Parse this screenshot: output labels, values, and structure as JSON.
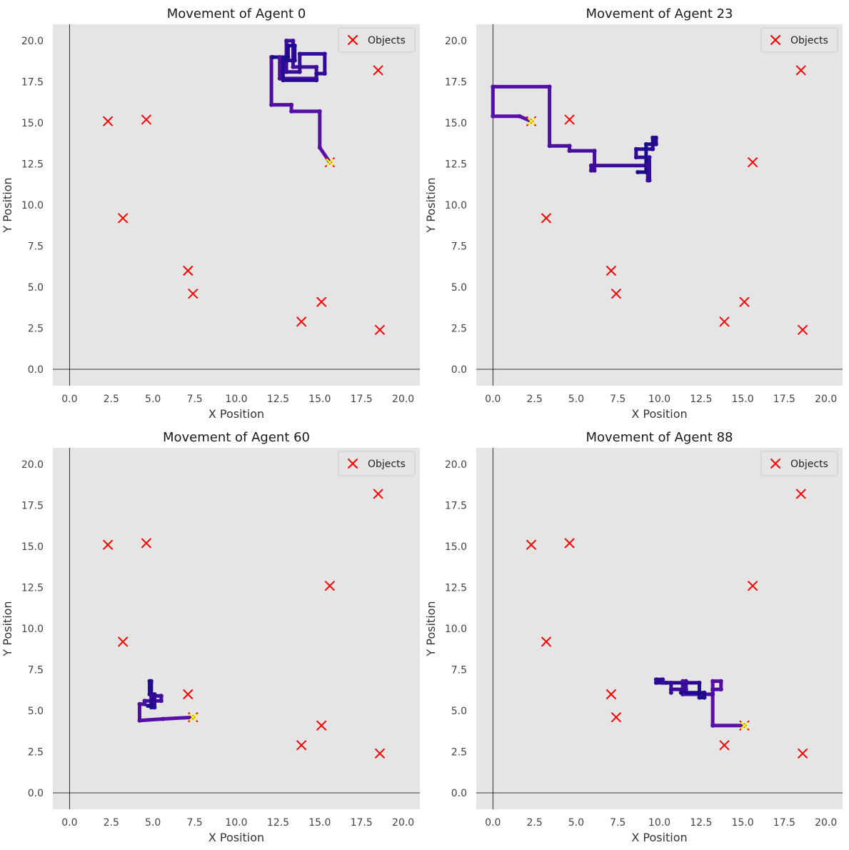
{
  "figure": {
    "colors": {
      "plot_background": "#e5e5e5",
      "axis_line": "#000000",
      "objects_marker": "#ff0000",
      "path_start": "#1a0a8c",
      "path_end": "#5b10a8",
      "endpoint_marker": "#ffff00",
      "tick_text": "#444444"
    }
  },
  "chart_data": [
    {
      "type": "scatter",
      "title": "Movement of Agent 0",
      "xlabel": "X Position",
      "ylabel": "Y Position",
      "xlim": [
        -1.0,
        21.0
      ],
      "ylim": [
        -1.0,
        21.0
      ],
      "xticks": [
        "0.0",
        "2.5",
        "5.0",
        "7.5",
        "10.0",
        "12.5",
        "15.0",
        "17.5",
        "20.0"
      ],
      "yticks": [
        "0.0",
        "2.5",
        "5.0",
        "7.5",
        "10.0",
        "12.5",
        "15.0",
        "17.5",
        "20.0"
      ],
      "grid": false,
      "legend": {
        "position": "top-right",
        "entries": [
          "Objects"
        ]
      },
      "series": [
        {
          "name": "Objects",
          "marker": "x",
          "points": [
            [
              2.3,
              15.1
            ],
            [
              4.6,
              15.2
            ],
            [
              3.2,
              9.2
            ],
            [
              7.1,
              6.0
            ],
            [
              7.4,
              4.6
            ],
            [
              13.9,
              2.9
            ],
            [
              15.1,
              4.1
            ],
            [
              18.6,
              2.4
            ],
            [
              18.5,
              18.2
            ],
            [
              15.6,
              12.6
            ]
          ]
        },
        {
          "marker": "path",
          "points": [
            [
              15.6,
              12.6
            ],
            [
              15.0,
              13.5
            ],
            [
              15.0,
              15.7
            ],
            [
              13.3,
              15.7
            ],
            [
              13.3,
              16.1
            ],
            [
              12.1,
              16.1
            ],
            [
              12.1,
              19.0
            ],
            [
              12.6,
              19.0
            ],
            [
              12.6,
              17.7
            ],
            [
              14.8,
              17.7
            ],
            [
              14.8,
              18.4
            ],
            [
              13.4,
              18.4
            ],
            [
              13.4,
              20.0
            ],
            [
              13.0,
              20.0
            ],
            [
              13.0,
              18.1
            ],
            [
              13.8,
              18.1
            ],
            [
              13.8,
              19.2
            ],
            [
              15.3,
              19.2
            ],
            [
              15.3,
              18.0
            ],
            [
              14.8,
              18.0
            ],
            [
              14.8,
              17.6
            ],
            [
              12.8,
              17.6
            ],
            [
              12.8,
              18.8
            ],
            [
              13.5,
              18.8
            ],
            [
              13.5,
              19.7
            ],
            [
              13.1,
              19.7
            ],
            [
              13.1,
              19.0
            ],
            [
              12.2,
              19.0
            ]
          ]
        },
        {
          "marker": "x",
          "points": [
            [
              15.6,
              12.6
            ]
          ]
        }
      ]
    },
    {
      "type": "scatter",
      "title": "Movement of Agent 23",
      "xlabel": "X Position",
      "ylabel": "Y Position",
      "xlim": [
        -1.0,
        21.0
      ],
      "ylim": [
        -1.0,
        21.0
      ],
      "xticks": [
        "0.0",
        "2.5",
        "5.0",
        "7.5",
        "10.0",
        "12.5",
        "15.0",
        "17.5",
        "20.0"
      ],
      "yticks": [
        "0.0",
        "2.5",
        "5.0",
        "7.5",
        "10.0",
        "12.5",
        "15.0",
        "17.5",
        "20.0"
      ],
      "grid": false,
      "legend": {
        "position": "top-right",
        "entries": [
          "Objects"
        ]
      },
      "series": [
        {
          "name": "Objects",
          "marker": "x",
          "points": [
            [
              2.3,
              15.1
            ],
            [
              4.6,
              15.2
            ],
            [
              3.2,
              9.2
            ],
            [
              7.1,
              6.0
            ],
            [
              7.4,
              4.6
            ],
            [
              13.9,
              2.9
            ],
            [
              15.1,
              4.1
            ],
            [
              18.6,
              2.4
            ],
            [
              18.5,
              18.2
            ],
            [
              15.6,
              12.6
            ]
          ]
        },
        {
          "marker": "path",
          "points": [
            [
              2.3,
              15.1
            ],
            [
              1.6,
              15.4
            ],
            [
              0.0,
              15.4
            ],
            [
              0.0,
              17.2
            ],
            [
              3.4,
              17.2
            ],
            [
              3.4,
              13.6
            ],
            [
              4.6,
              13.6
            ],
            [
              4.6,
              13.3
            ],
            [
              6.1,
              13.3
            ],
            [
              6.1,
              12.1
            ],
            [
              5.9,
              12.1
            ],
            [
              5.9,
              12.4
            ],
            [
              9.3,
              12.4
            ],
            [
              9.3,
              11.5
            ],
            [
              9.4,
              11.5
            ],
            [
              9.4,
              12.9
            ],
            [
              8.6,
              12.9
            ],
            [
              8.6,
              13.4
            ],
            [
              9.6,
              13.4
            ],
            [
              9.6,
              14.1
            ],
            [
              9.8,
              14.1
            ],
            [
              9.8,
              13.7
            ],
            [
              9.2,
              13.7
            ],
            [
              9.2,
              12.0
            ],
            [
              8.7,
              12.0
            ]
          ]
        },
        {
          "marker": "x",
          "points": [
            [
              2.3,
              15.1
            ]
          ]
        }
      ]
    },
    {
      "type": "scatter",
      "title": "Movement of Agent 60",
      "xlabel": "X Position",
      "ylabel": "Y Position",
      "xlim": [
        -1.0,
        21.0
      ],
      "ylim": [
        -1.0,
        21.0
      ],
      "xticks": [
        "0.0",
        "2.5",
        "5.0",
        "7.5",
        "10.0",
        "12.5",
        "15.0",
        "17.5",
        "20.0"
      ],
      "yticks": [
        "0.0",
        "2.5",
        "5.0",
        "7.5",
        "10.0",
        "12.5",
        "15.0",
        "17.5",
        "20.0"
      ],
      "grid": false,
      "legend": {
        "position": "top-right",
        "entries": [
          "Objects"
        ]
      },
      "series": [
        {
          "name": "Objects",
          "marker": "x",
          "points": [
            [
              2.3,
              15.1
            ],
            [
              4.6,
              15.2
            ],
            [
              3.2,
              9.2
            ],
            [
              7.1,
              6.0
            ],
            [
              7.4,
              4.6
            ],
            [
              13.9,
              2.9
            ],
            [
              15.1,
              4.1
            ],
            [
              18.6,
              2.4
            ],
            [
              18.5,
              18.2
            ],
            [
              15.6,
              12.6
            ]
          ]
        },
        {
          "marker": "path",
          "points": [
            [
              7.4,
              4.6
            ],
            [
              5.6,
              4.5
            ],
            [
              4.2,
              4.4
            ],
            [
              4.2,
              5.4
            ],
            [
              4.5,
              5.4
            ],
            [
              4.5,
              5.6
            ],
            [
              5.5,
              5.6
            ],
            [
              5.5,
              5.9
            ],
            [
              4.9,
              5.9
            ],
            [
              4.9,
              5.2
            ],
            [
              5.1,
              5.2
            ],
            [
              5.1,
              6.0
            ],
            [
              4.8,
              6.0
            ],
            [
              4.8,
              6.8
            ],
            [
              4.9,
              6.8
            ],
            [
              4.9,
              5.3
            ],
            [
              4.7,
              5.3
            ]
          ]
        },
        {
          "marker": "x",
          "points": [
            [
              7.4,
              4.6
            ]
          ]
        }
      ]
    },
    {
      "type": "scatter",
      "title": "Movement of Agent 88",
      "xlabel": "X Position",
      "ylabel": "Y Position",
      "xlim": [
        -1.0,
        21.0
      ],
      "ylim": [
        -1.0,
        21.0
      ],
      "xticks": [
        "0.0",
        "2.5",
        "5.0",
        "7.5",
        "10.0",
        "12.5",
        "15.0",
        "17.5",
        "20.0"
      ],
      "yticks": [
        "0.0",
        "2.5",
        "5.0",
        "7.5",
        "10.0",
        "12.5",
        "15.0",
        "17.5",
        "20.0"
      ],
      "grid": false,
      "legend": {
        "position": "top-right",
        "entries": [
          "Objects"
        ]
      },
      "series": [
        {
          "name": "Objects",
          "marker": "x",
          "points": [
            [
              2.3,
              15.1
            ],
            [
              4.6,
              15.2
            ],
            [
              3.2,
              9.2
            ],
            [
              7.1,
              6.0
            ],
            [
              7.4,
              4.6
            ],
            [
              13.9,
              2.9
            ],
            [
              15.1,
              4.1
            ],
            [
              18.6,
              2.4
            ],
            [
              18.5,
              18.2
            ],
            [
              15.6,
              12.6
            ]
          ]
        },
        {
          "marker": "path",
          "points": [
            [
              15.1,
              4.1
            ],
            [
              13.2,
              4.1
            ],
            [
              13.2,
              6.8
            ],
            [
              13.7,
              6.8
            ],
            [
              13.7,
              6.3
            ],
            [
              13.2,
              6.3
            ],
            [
              13.2,
              6.0
            ],
            [
              11.4,
              6.0
            ],
            [
              11.4,
              6.8
            ],
            [
              11.6,
              6.8
            ],
            [
              11.6,
              6.3
            ],
            [
              10.7,
              6.3
            ],
            [
              10.7,
              6.1
            ],
            [
              10.7,
              6.7
            ],
            [
              10.2,
              6.7
            ],
            [
              10.2,
              6.9
            ],
            [
              9.8,
              6.9
            ],
            [
              9.8,
              6.7
            ],
            [
              10.4,
              6.7
            ],
            [
              12.4,
              6.7
            ],
            [
              12.4,
              5.8
            ],
            [
              12.7,
              5.8
            ],
            [
              12.7,
              6.1
            ],
            [
              11.3,
              6.1
            ]
          ]
        },
        {
          "marker": "x",
          "points": [
            [
              15.1,
              4.1
            ]
          ]
        }
      ]
    }
  ]
}
